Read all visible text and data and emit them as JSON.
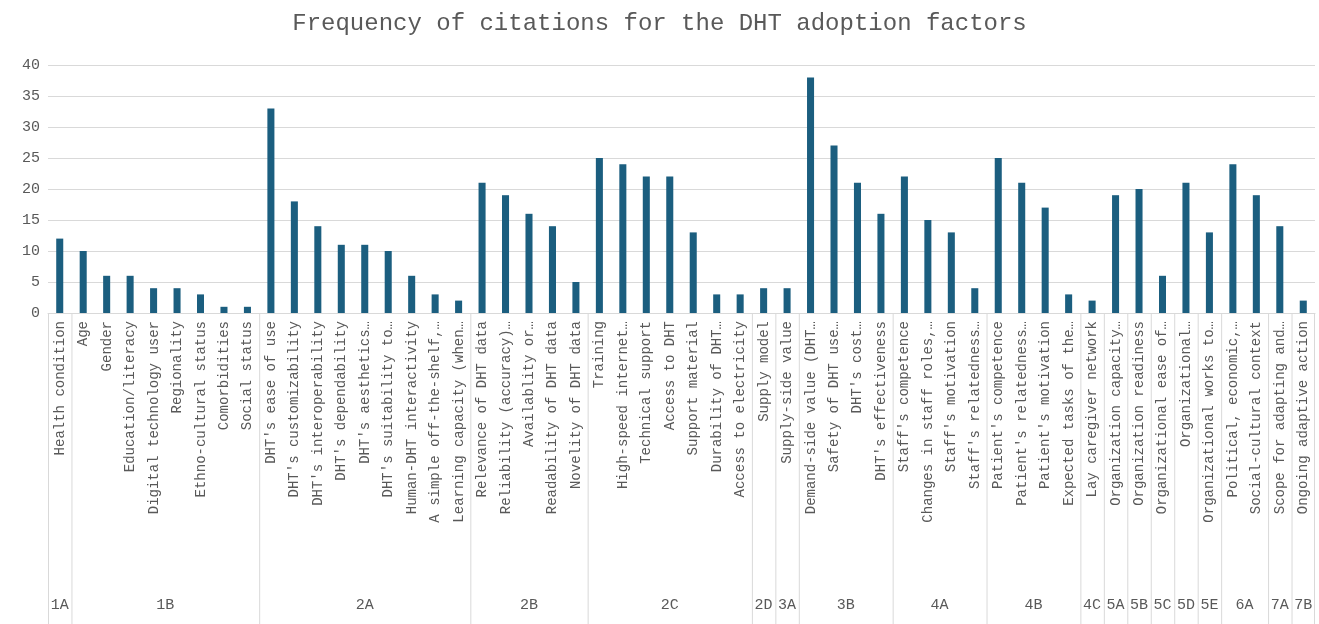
{
  "chart_data": {
    "type": "bar",
    "title": "Frequency of citations for the DHT adoption factors",
    "categories": [
      "Health condition",
      "Age",
      "Gender",
      "Education/literacy",
      "Digital technology user",
      "Regionality",
      "Ethno-cultural status",
      "Comorbidities",
      "Social status",
      "DHT's ease of use",
      "DHT's customizability",
      "DHT's interoperability",
      "DHT's dependability",
      "DHT's aesthetics…",
      "DHT's suitability to…",
      "Human-DHT interactivity",
      "A simple off-the-shelf,…",
      "Learning capacity (when…",
      "Relevance of DHT data",
      "Reliability (accuracy)…",
      "Availablity or…",
      "Readability of DHT data",
      "Novelity of DHT data",
      "Training",
      "High-speed internet…",
      "Technical support",
      "Access to DHT",
      "Support material",
      "Durability of DHT…",
      "Access to electricity",
      "Supply model",
      "Supply-side value",
      "Demand-side value (DHT…",
      "Safety of DHT use…",
      "DHT's cost…",
      "DHT's effectiveness",
      "Staff's competence",
      "Changes in staff roles,…",
      "Staff's motivation",
      "Staff's relatedness…",
      "Patient's competence",
      "Patient's relatedness…",
      "Patient's motivation",
      "Expected tasks of the…",
      "Lay caregiver network",
      "Organization capacity…",
      "Organization readiness",
      "Organizational ease of…",
      "Organizational…",
      "Organizational works to…",
      "Political, economic,…",
      "Social-cultural context",
      "Scope for adapting and…",
      "Ongoing adaptive action"
    ],
    "series": [
      {
        "color": "#1b5e7f",
        "values": [
          12,
          null,
          null,
          null,
          null,
          null,
          null,
          null,
          null,
          null,
          null,
          null,
          null,
          null,
          null,
          null,
          null,
          null,
          null,
          null,
          null,
          null,
          null,
          null,
          null,
          null,
          null,
          null,
          null,
          null,
          null,
          null,
          null,
          null,
          null,
          null,
          null,
          null,
          null,
          null,
          null,
          null,
          null,
          null,
          null,
          null,
          null,
          null,
          null,
          null,
          null,
          null,
          null,
          null
        ]
      },
      {
        "color": "#1b5e7f",
        "values": [
          null,
          10,
          6,
          6,
          4,
          4,
          3,
          1,
          1,
          null,
          null,
          null,
          null,
          null,
          null,
          null,
          null,
          null,
          null,
          null,
          null,
          null,
          null,
          null,
          null,
          null,
          null,
          null,
          null,
          null,
          null,
          null,
          null,
          null,
          null,
          null,
          null,
          null,
          null,
          null,
          null,
          null,
          null,
          null,
          null,
          null,
          null,
          null,
          null,
          null,
          null,
          null,
          null,
          null
        ]
      },
      {
        "color": "#1b5e7f",
        "values": [
          null,
          null,
          null,
          null,
          null,
          null,
          null,
          null,
          null,
          33,
          18,
          14,
          11,
          11,
          10,
          6,
          3,
          2,
          null,
          null,
          null,
          null,
          null,
          null,
          null,
          null,
          null,
          null,
          null,
          null,
          null,
          null,
          null,
          null,
          null,
          null,
          null,
          null,
          null,
          null,
          null,
          null,
          null,
          null,
          null,
          null,
          null,
          null,
          null,
          null,
          null,
          null,
          null,
          null
        ]
      },
      {
        "color": "#1b5e7f",
        "values": [
          null,
          null,
          null,
          null,
          null,
          null,
          null,
          null,
          null,
          null,
          null,
          null,
          null,
          null,
          null,
          null,
          null,
          null,
          21,
          19,
          16,
          14,
          5,
          null,
          null,
          null,
          null,
          null,
          null,
          null,
          null,
          null,
          null,
          null,
          null,
          null,
          null,
          null,
          null,
          null,
          null,
          null,
          null,
          null,
          null,
          null,
          null,
          null,
          null,
          null,
          null,
          null,
          null,
          null
        ]
      },
      {
        "color": "#1b5e7f",
        "values": [
          null,
          null,
          null,
          null,
          null,
          null,
          null,
          null,
          null,
          null,
          null,
          null,
          null,
          null,
          null,
          null,
          null,
          null,
          null,
          null,
          null,
          null,
          null,
          25,
          24,
          22,
          22,
          13,
          3,
          3,
          null,
          null,
          null,
          null,
          null,
          null,
          null,
          null,
          null,
          null,
          null,
          null,
          null,
          null,
          null,
          null,
          null,
          null,
          null,
          null,
          null,
          null,
          null,
          null
        ]
      },
      {
        "color": "#1b5e7f",
        "values": [
          null,
          null,
          null,
          null,
          null,
          null,
          null,
          null,
          null,
          null,
          null,
          null,
          null,
          null,
          null,
          null,
          null,
          null,
          null,
          null,
          null,
          null,
          null,
          null,
          null,
          null,
          null,
          null,
          null,
          null,
          4,
          null,
          null,
          null,
          null,
          null,
          null,
          null,
          null,
          null,
          null,
          null,
          null,
          null,
          null,
          null,
          null,
          null,
          null,
          null,
          null,
          null,
          null,
          null
        ]
      },
      {
        "color": "#1b5e7f",
        "values": [
          null,
          null,
          null,
          null,
          null,
          null,
          null,
          null,
          null,
          null,
          null,
          null,
          null,
          null,
          null,
          null,
          null,
          null,
          null,
          null,
          null,
          null,
          null,
          null,
          null,
          null,
          null,
          null,
          null,
          null,
          null,
          4,
          null,
          null,
          null,
          null,
          null,
          null,
          null,
          null,
          null,
          null,
          null,
          null,
          null,
          null,
          null,
          null,
          null,
          null,
          null,
          null,
          null,
          null
        ]
      },
      {
        "color": "#1b5e7f",
        "values": [
          null,
          null,
          null,
          null,
          null,
          null,
          null,
          null,
          null,
          null,
          null,
          null,
          null,
          null,
          null,
          null,
          null,
          null,
          null,
          null,
          null,
          null,
          null,
          null,
          null,
          null,
          null,
          null,
          null,
          null,
          null,
          null,
          38,
          27,
          21,
          16,
          null,
          null,
          null,
          null,
          null,
          null,
          null,
          null,
          null,
          null,
          null,
          null,
          null,
          null,
          null,
          null,
          null,
          null
        ]
      },
      {
        "color": "#1b5e7f",
        "values": [
          null,
          null,
          null,
          null,
          null,
          null,
          null,
          null,
          null,
          null,
          null,
          null,
          null,
          null,
          null,
          null,
          null,
          null,
          null,
          null,
          null,
          null,
          null,
          null,
          null,
          null,
          null,
          null,
          null,
          null,
          null,
          null,
          null,
          null,
          null,
          null,
          22,
          15,
          13,
          4,
          null,
          null,
          null,
          null,
          null,
          null,
          null,
          null,
          null,
          null,
          null,
          null,
          null,
          null
        ]
      },
      {
        "color": "#1b5e7f",
        "values": [
          null,
          null,
          null,
          null,
          null,
          null,
          null,
          null,
          null,
          null,
          null,
          null,
          null,
          null,
          null,
          null,
          null,
          null,
          null,
          null,
          null,
          null,
          null,
          null,
          null,
          null,
          null,
          null,
          null,
          null,
          null,
          null,
          null,
          null,
          null,
          null,
          null,
          null,
          null,
          null,
          25,
          21,
          17,
          3,
          null,
          null,
          null,
          null,
          null,
          null,
          null,
          null,
          null,
          null
        ]
      },
      {
        "color": "#1b5e7f",
        "values": [
          null,
          null,
          null,
          null,
          null,
          null,
          null,
          null,
          null,
          null,
          null,
          null,
          null,
          null,
          null,
          null,
          null,
          null,
          null,
          null,
          null,
          null,
          null,
          null,
          null,
          null,
          null,
          null,
          null,
          null,
          null,
          null,
          null,
          null,
          null,
          null,
          null,
          null,
          null,
          null,
          null,
          null,
          null,
          null,
          2,
          null,
          null,
          null,
          null,
          null,
          null,
          null,
          null,
          null
        ]
      },
      {
        "color": "#1b5e7f",
        "values": [
          null,
          null,
          null,
          null,
          null,
          null,
          null,
          null,
          null,
          null,
          null,
          null,
          null,
          null,
          null,
          null,
          null,
          null,
          null,
          null,
          null,
          null,
          null,
          null,
          null,
          null,
          null,
          null,
          null,
          null,
          null,
          null,
          null,
          null,
          null,
          null,
          null,
          null,
          null,
          null,
          null,
          null,
          null,
          null,
          null,
          19,
          null,
          null,
          null,
          null,
          null,
          null,
          null,
          null
        ]
      },
      {
        "color": "#1b5e7f",
        "values": [
          null,
          null,
          null,
          null,
          null,
          null,
          null,
          null,
          null,
          null,
          null,
          null,
          null,
          null,
          null,
          null,
          null,
          null,
          null,
          null,
          null,
          null,
          null,
          null,
          null,
          null,
          null,
          null,
          null,
          null,
          null,
          null,
          null,
          null,
          null,
          null,
          null,
          null,
          null,
          null,
          null,
          null,
          null,
          null,
          null,
          null,
          20,
          null,
          null,
          null,
          null,
          null,
          null,
          null
        ]
      },
      {
        "color": "#1b5e7f",
        "values": [
          null,
          null,
          null,
          null,
          null,
          null,
          null,
          null,
          null,
          null,
          null,
          null,
          null,
          null,
          null,
          null,
          null,
          null,
          null,
          null,
          null,
          null,
          null,
          null,
          null,
          null,
          null,
          null,
          null,
          null,
          null,
          null,
          null,
          null,
          null,
          null,
          null,
          null,
          null,
          null,
          null,
          null,
          null,
          null,
          null,
          null,
          null,
          6,
          null,
          null,
          null,
          null,
          null,
          null
        ]
      },
      {
        "color": "#1b5e7f",
        "values": [
          null,
          null,
          null,
          null,
          null,
          null,
          null,
          null,
          null,
          null,
          null,
          null,
          null,
          null,
          null,
          null,
          null,
          null,
          null,
          null,
          null,
          null,
          null,
          null,
          null,
          null,
          null,
          null,
          null,
          null,
          null,
          null,
          null,
          null,
          null,
          null,
          null,
          null,
          null,
          null,
          null,
          null,
          null,
          null,
          null,
          null,
          null,
          null,
          21,
          null,
          null,
          null,
          null,
          null
        ]
      },
      {
        "color": "#1b5e7f",
        "values": [
          null,
          null,
          null,
          null,
          null,
          null,
          null,
          null,
          null,
          null,
          null,
          null,
          null,
          null,
          null,
          null,
          null,
          null,
          null,
          null,
          null,
          null,
          null,
          null,
          null,
          null,
          null,
          null,
          null,
          null,
          null,
          null,
          null,
          null,
          null,
          null,
          null,
          null,
          null,
          null,
          null,
          null,
          null,
          null,
          null,
          null,
          null,
          null,
          null,
          13,
          null,
          null,
          null,
          null
        ]
      },
      {
        "color": "#1b5e7f",
        "values": [
          null,
          null,
          null,
          null,
          null,
          null,
          null,
          null,
          null,
          null,
          null,
          null,
          null,
          null,
          null,
          null,
          null,
          null,
          null,
          null,
          null,
          null,
          null,
          null,
          null,
          null,
          null,
          null,
          null,
          null,
          null,
          null,
          null,
          null,
          null,
          null,
          null,
          null,
          null,
          null,
          null,
          null,
          null,
          null,
          null,
          null,
          null,
          null,
          null,
          null,
          24,
          19,
          null,
          null
        ]
      },
      {
        "color": "#1b5e7f",
        "values": [
          null,
          null,
          null,
          null,
          null,
          null,
          null,
          null,
          null,
          null,
          null,
          null,
          null,
          null,
          null,
          null,
          null,
          null,
          null,
          null,
          null,
          null,
          null,
          null,
          null,
          null,
          null,
          null,
          null,
          null,
          null,
          null,
          null,
          null,
          null,
          null,
          null,
          null,
          null,
          null,
          null,
          null,
          null,
          null,
          null,
          null,
          null,
          null,
          null,
          null,
          null,
          null,
          14,
          null
        ]
      },
      {
        "color": "#1b5e7f",
        "values": [
          null,
          null,
          null,
          null,
          null,
          null,
          null,
          null,
          null,
          null,
          null,
          null,
          null,
          null,
          null,
          null,
          null,
          null,
          null,
          null,
          null,
          null,
          null,
          null,
          null,
          null,
          null,
          null,
          null,
          null,
          null,
          null,
          null,
          null,
          null,
          null,
          null,
          null,
          null,
          null,
          null,
          null,
          null,
          null,
          null,
          null,
          null,
          null,
          null,
          null,
          null,
          null,
          null,
          2
        ]
      }
    ],
    "ylim": [
      0,
      40
    ],
    "yticks": [
      0,
      5,
      10,
      15,
      20,
      25,
      30,
      35,
      40
    ],
    "grid": "y",
    "annotations": [
      "1A",
      "1B",
      "2A",
      "2B",
      "2C",
      "2D",
      "3A",
      "3B",
      "4A",
      "4B",
      "4C",
      "5A",
      "5B",
      "5C",
      "5D",
      "5E",
      "6A",
      "7A",
      "7B"
    ]
  }
}
